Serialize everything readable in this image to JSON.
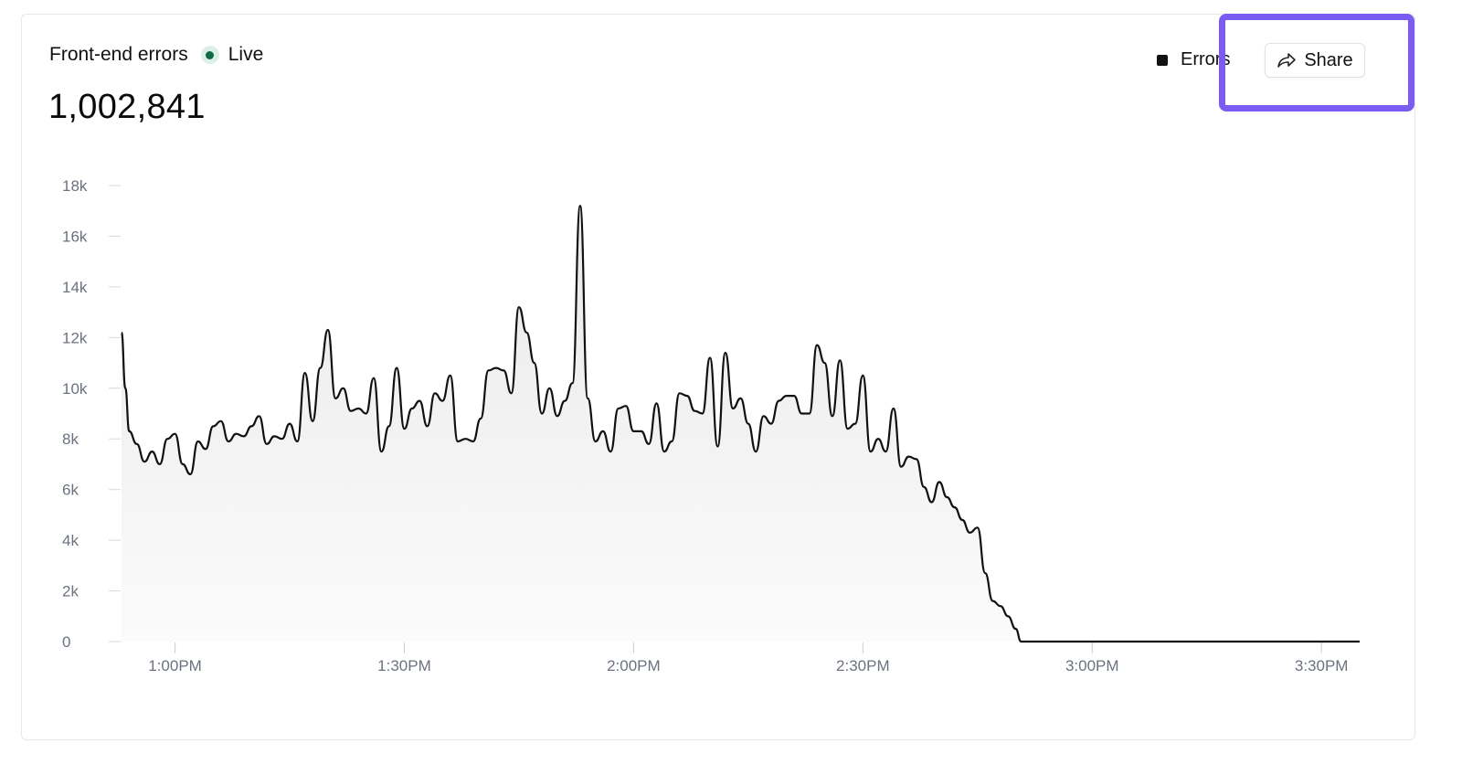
{
  "widget": {
    "title": "Front-end errors",
    "live_label": "Live",
    "total": "1,002,841",
    "share_label": "Share"
  },
  "colors": {
    "line": "#111111",
    "live_dot": "#0f6b47",
    "highlight": "#7a5cf0",
    "tick_text": "#6b7280"
  },
  "chart_data": {
    "type": "area",
    "x_unit": "minutes after 12:00PM",
    "ylim": [
      0,
      18000
    ],
    "y_ticks": [
      0,
      2000,
      4000,
      6000,
      8000,
      10000,
      12000,
      14000,
      16000,
      18000
    ],
    "y_tick_labels": [
      "0",
      "2k",
      "4k",
      "6k",
      "8k",
      "10k",
      "12k",
      "14k",
      "16k",
      "18k"
    ],
    "x_ticks": [
      60,
      90,
      120,
      150,
      180,
      210
    ],
    "x_tick_labels": [
      "1:00PM",
      "1:30PM",
      "2:00PM",
      "2:30PM",
      "3:00PM",
      "3:30PM"
    ],
    "legend": [
      "Errors"
    ],
    "legend_position": "top-right",
    "grid": false,
    "series": [
      {
        "name": "Errors",
        "points": [
          [
            53,
            12200
          ],
          [
            53.5,
            10000
          ],
          [
            54,
            8300
          ],
          [
            55,
            7800
          ],
          [
            56,
            7100
          ],
          [
            57,
            7500
          ],
          [
            58,
            7000
          ],
          [
            59,
            8000
          ],
          [
            60,
            8200
          ],
          [
            61,
            7000
          ],
          [
            62,
            6600
          ],
          [
            63,
            7900
          ],
          [
            64,
            7600
          ],
          [
            65,
            8500
          ],
          [
            66,
            8700
          ],
          [
            67,
            7900
          ],
          [
            68,
            8200
          ],
          [
            69,
            8100
          ],
          [
            70,
            8500
          ],
          [
            71,
            8900
          ],
          [
            72,
            7800
          ],
          [
            73,
            8100
          ],
          [
            74,
            8000
          ],
          [
            75,
            8600
          ],
          [
            76,
            7900
          ],
          [
            77,
            10600
          ],
          [
            78,
            8700
          ],
          [
            79,
            10800
          ],
          [
            80,
            12300
          ],
          [
            81,
            9600
          ],
          [
            82,
            10000
          ],
          [
            83,
            9100
          ],
          [
            84,
            9200
          ],
          [
            85,
            9000
          ],
          [
            86,
            10400
          ],
          [
            87,
            7500
          ],
          [
            88,
            8500
          ],
          [
            89,
            10800
          ],
          [
            90,
            8400
          ],
          [
            91,
            9200
          ],
          [
            92,
            9500
          ],
          [
            93,
            8500
          ],
          [
            94,
            9800
          ],
          [
            95,
            9500
          ],
          [
            96,
            10500
          ],
          [
            97,
            7900
          ],
          [
            98,
            8000
          ],
          [
            99,
            7900
          ],
          [
            100,
            8800
          ],
          [
            101,
            10700
          ],
          [
            102,
            10800
          ],
          [
            103,
            10700
          ],
          [
            104,
            9800
          ],
          [
            105,
            13200
          ],
          [
            106,
            12200
          ],
          [
            107,
            11000
          ],
          [
            108,
            9000
          ],
          [
            109,
            10000
          ],
          [
            110,
            8900
          ],
          [
            111,
            9500
          ],
          [
            112,
            10200
          ],
          [
            113,
            17200
          ],
          [
            114,
            9600
          ],
          [
            115,
            7900
          ],
          [
            116,
            8300
          ],
          [
            117,
            7500
          ],
          [
            118,
            9200
          ],
          [
            119,
            9300
          ],
          [
            120,
            8300
          ],
          [
            121,
            8300
          ],
          [
            122,
            7800
          ],
          [
            123,
            9400
          ],
          [
            124,
            7500
          ],
          [
            125,
            7900
          ],
          [
            126,
            9800
          ],
          [
            127,
            9700
          ],
          [
            128,
            9100
          ],
          [
            129,
            9000
          ],
          [
            130,
            11200
          ],
          [
            131,
            7700
          ],
          [
            132,
            11400
          ],
          [
            133,
            9200
          ],
          [
            134,
            9600
          ],
          [
            135,
            8600
          ],
          [
            136,
            7500
          ],
          [
            137,
            8900
          ],
          [
            138,
            8600
          ],
          [
            139,
            9500
          ],
          [
            140,
            9700
          ],
          [
            141,
            9700
          ],
          [
            142,
            9000
          ],
          [
            143,
            9000
          ],
          [
            144,
            11700
          ],
          [
            145,
            11000
          ],
          [
            146,
            8900
          ],
          [
            147,
            11100
          ],
          [
            148,
            8400
          ],
          [
            149,
            8600
          ],
          [
            150,
            10500
          ],
          [
            151,
            7500
          ],
          [
            152,
            8000
          ],
          [
            153,
            7500
          ],
          [
            154,
            9200
          ],
          [
            155,
            6900
          ],
          [
            156,
            7300
          ],
          [
            157,
            7200
          ],
          [
            158,
            6100
          ],
          [
            159,
            5500
          ],
          [
            160,
            6300
          ],
          [
            161,
            5700
          ],
          [
            162,
            5300
          ],
          [
            163,
            4800
          ],
          [
            164,
            4300
          ],
          [
            165,
            4500
          ],
          [
            166,
            2700
          ],
          [
            167,
            1600
          ],
          [
            168,
            1400
          ],
          [
            169,
            1000
          ],
          [
            170,
            500
          ],
          [
            170.7,
            0
          ],
          [
            215,
            0
          ]
        ]
      }
    ]
  }
}
